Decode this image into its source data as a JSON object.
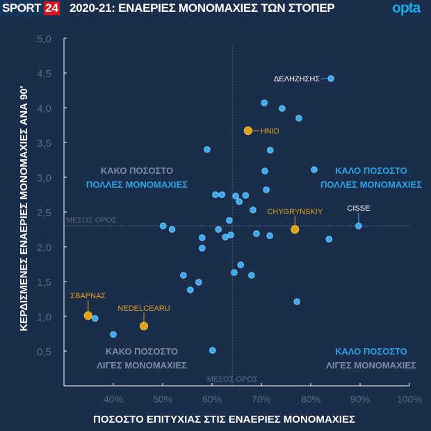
{
  "header": {
    "brand": "SPORT",
    "brand_num": "24",
    "title": "2020-21: ΕΝΑΕΡΙΕΣ ΜΟΝΟΜΑΧΙΕΣ ΤΩΝ ΣΤΟΠΕΡ",
    "provider": "opta"
  },
  "colors": {
    "background": "#1a2d4a",
    "dot": "#3aa8ea",
    "highlight": "#e0a11b",
    "axis": "#ffffff",
    "tick_label": "#5b6b85",
    "quadrant_bad": "#7d8aa3",
    "quadrant_good": "#2aa5e6"
  },
  "chart_data": {
    "type": "scatter",
    "title": "2020-21: ΕΝΑΕΡΙΕΣ ΜΟΝΟΜΑΧΙΕΣ ΤΩΝ ΣΤΟΠΕΡ",
    "xlabel": "ΠΟΣΟΣΤΟ ΕΠΙΤΥΧΙΑΣ ΣΤΙΣ ΕΝΑΕΡΙΕΣ ΜΟΝΟΜΑΧΙΕΣ",
    "ylabel": "ΚΕΡΔΙΣΜΕΝΕΣ ΕΝΑΕΡΙΕΣ ΜΟΝΟΜΑΧΙΕΣ ΑΝΑ 90'",
    "xlim": [
      30,
      100
    ],
    "ylim": [
      0,
      5
    ],
    "x_ticks": [
      40,
      50,
      60,
      70,
      80,
      90,
      100
    ],
    "x_tick_labels": [
      "40%",
      "50%",
      "60%",
      "70%",
      "80%",
      "90%",
      "100%"
    ],
    "y_ticks": [
      0.5,
      1,
      1.5,
      2,
      2.5,
      3,
      3.5,
      4,
      4.5,
      5
    ],
    "y_tick_labels": [
      "0,5",
      "1,0",
      "1,5",
      "2,0",
      "2,5",
      "3,0",
      "3,5",
      "4,0",
      "4,5",
      "5,0"
    ],
    "mean": {
      "x": 64.1,
      "y": 2.3,
      "label": "ΜΕΣΟΣ ΟΡΟΣ"
    },
    "quadrants": {
      "top_left": [
        "ΚΑΚΟ ΠΟΣΟΣΤΟ",
        "ΠΟΛΛΕΣ ΜΟΝΟΜΑΧΙΕΣ"
      ],
      "top_right": [
        "ΚΑΛΟ ΠΟΣΟΣΤΟ",
        "ΠΟΛΛΕΣ ΜΟΝΟΜΑΧΙΕΣ"
      ],
      "bottom_left": [
        "ΚΑΚΟ ΠΟΣΟΣΤΟ",
        "ΛΙΓΕΣ ΜΟΝΟΜΑΧΙΕΣ"
      ],
      "bottom_right": [
        "ΚΑΛΟ ΠΟΣΟΣΤΟ",
        "ΛΙΓΕΣ ΜΟΝΟΜΑΧΙΕΣ"
      ]
    },
    "points": [
      {
        "x": 84.1,
        "y": 4.42,
        "label": "ΔΕΛΗΖΗΣΗΣ"
      },
      {
        "x": 70.6,
        "y": 4.07
      },
      {
        "x": 74.2,
        "y": 3.99
      },
      {
        "x": 77.6,
        "y": 3.85
      },
      {
        "x": 67.3,
        "y": 3.67,
        "label": "HNID",
        "highlight": true
      },
      {
        "x": 71.8,
        "y": 3.39
      },
      {
        "x": 59.0,
        "y": 3.4
      },
      {
        "x": 80.7,
        "y": 3.11
      },
      {
        "x": 70.7,
        "y": 3.09
      },
      {
        "x": 60.7,
        "y": 2.75
      },
      {
        "x": 62.0,
        "y": 2.75
      },
      {
        "x": 64.8,
        "y": 2.73
      },
      {
        "x": 66.8,
        "y": 2.74
      },
      {
        "x": 65.5,
        "y": 2.65
      },
      {
        "x": 68.3,
        "y": 2.53
      },
      {
        "x": 71.0,
        "y": 2.82
      },
      {
        "x": 63.5,
        "y": 2.38
      },
      {
        "x": 50.1,
        "y": 2.3
      },
      {
        "x": 51.9,
        "y": 2.25
      },
      {
        "x": 61.3,
        "y": 2.25
      },
      {
        "x": 76.8,
        "y": 2.25,
        "label": "CHYGRYNSKIY",
        "highlight": true
      },
      {
        "x": 89.7,
        "y": 2.3,
        "label": "CISSE"
      },
      {
        "x": 58.0,
        "y": 2.13
      },
      {
        "x": 62.7,
        "y": 2.14
      },
      {
        "x": 63.8,
        "y": 2.17
      },
      {
        "x": 69.0,
        "y": 2.19
      },
      {
        "x": 71.7,
        "y": 2.16
      },
      {
        "x": 83.7,
        "y": 2.11
      },
      {
        "x": 58.0,
        "y": 1.98
      },
      {
        "x": 65.8,
        "y": 1.74
      },
      {
        "x": 54.2,
        "y": 1.59
      },
      {
        "x": 57.3,
        "y": 1.49
      },
      {
        "x": 55.6,
        "y": 1.38
      },
      {
        "x": 64.5,
        "y": 1.63
      },
      {
        "x": 68.0,
        "y": 1.59
      },
      {
        "x": 77.2,
        "y": 1.21
      },
      {
        "x": 34.9,
        "y": 1.01,
        "label": "ΣΒΑΡΝΑΣ",
        "highlight": true
      },
      {
        "x": 36.3,
        "y": 0.97
      },
      {
        "x": 46.2,
        "y": 0.86,
        "label": "NEDELCEARU",
        "highlight": true
      },
      {
        "x": 40.0,
        "y": 0.74
      },
      {
        "x": 60.1,
        "y": 0.51
      }
    ]
  }
}
